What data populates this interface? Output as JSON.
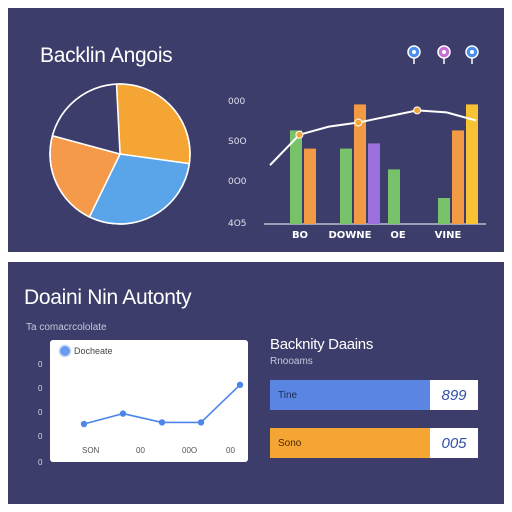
{
  "top_panel": {
    "title": "Backlin Angois",
    "pie": {
      "slices": [
        {
          "label": "orange",
          "value": 28,
          "color": "#f4a534"
        },
        {
          "label": "blue",
          "value": 30,
          "color": "#5aa4ea"
        },
        {
          "label": "light-orange",
          "value": 22,
          "color": "#f59a4a"
        },
        {
          "label": "navy",
          "value": 20,
          "color": "#3d3d6b"
        }
      ]
    },
    "chart_data": {
      "type": "bar",
      "y_tick_labels": [
        "000",
        "S0O",
        "0O0",
        "4O5"
      ],
      "categories": [
        "BO",
        "DOWNE",
        "OE",
        "VINE"
      ],
      "series": [
        {
          "color": "#78c26a",
          "values": [
            0.72,
            0.58,
            0.42,
            0.2
          ]
        },
        {
          "color": "#f39a45",
          "values": [
            0.58,
            0.92,
            0.0,
            0.72
          ]
        },
        {
          "color": "#9b6fdc",
          "values": [
            0.0,
            0.62,
            0.0,
            0.0
          ]
        },
        {
          "color": "#f7c233",
          "values": [
            0.0,
            0.0,
            0.0,
            0.92
          ]
        }
      ],
      "trend": [
        0.62,
        0.92,
        1.0,
        1.04,
        1.1,
        1.16,
        1.14,
        1.06
      ],
      "pins": [
        {
          "color": "#4d8ff0"
        },
        {
          "color": "#c670d6"
        },
        {
          "color": "#4d8ff0"
        }
      ]
    }
  },
  "bottom_panel": {
    "title": "Doaini Nin Autonty",
    "subtitle": "Ta comacrcololate",
    "line_card": {
      "legend": "Docheate",
      "y_tick_labels": [
        "0",
        "0",
        "0",
        "0",
        "0"
      ],
      "x_tick_labels": [
        "SON",
        "00",
        "00O",
        "00"
      ],
      "chart_data": {
        "type": "line",
        "values": [
          0.25,
          0.38,
          0.27,
          0.27,
          0.74
        ]
      }
    },
    "bars": {
      "title": "Backnity Daains",
      "subtitle": "Rnooams",
      "items": [
        {
          "label": "Tine",
          "value": "899",
          "color": "#5b85e3"
        },
        {
          "label": "Sono",
          "value": "005",
          "color": "#f4a534"
        }
      ]
    }
  }
}
